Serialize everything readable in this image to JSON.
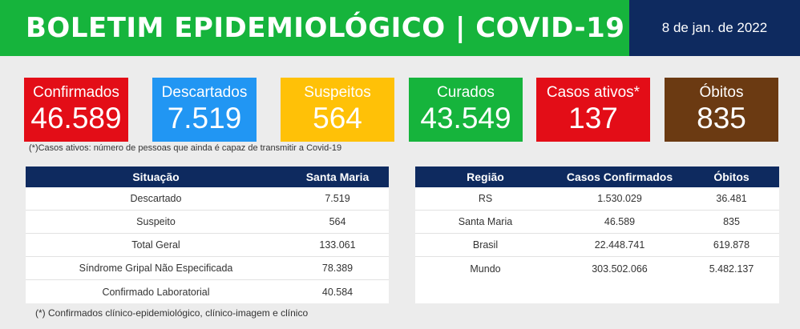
{
  "header": {
    "title": "BOLETIM EPIDEMIOLÓGICO | COVID-19",
    "date": "8 de jan. de 2022"
  },
  "cards": [
    {
      "label": "Confirmados",
      "value": "46.589",
      "color": "#e30d17"
    },
    {
      "label": "Descartados",
      "value": "7.519",
      "color": "#2196f3"
    },
    {
      "label": "Suspeitos",
      "value": "564",
      "color": "#ffc107"
    },
    {
      "label": "Curados",
      "value": "43.549",
      "color": "#16b43c"
    },
    {
      "label": "Casos ativos*",
      "value": "137",
      "color": "#e30d17"
    },
    {
      "label": "Óbitos",
      "value": "835",
      "color": "#6b3a12"
    }
  ],
  "note_active": "(*)Casos ativos: número de pessoas que ainda é capaz de transmitir a Covid-19",
  "table_situacao": {
    "headers": [
      "Situação",
      "Santa Maria"
    ],
    "rows": [
      [
        "Descartado",
        "7.519"
      ],
      [
        "Suspeito",
        "564"
      ],
      [
        "Total Geral",
        "133.061"
      ],
      [
        "Síndrome Gripal Não Especificada",
        "78.389"
      ],
      [
        "Confirmado Laboratorial",
        "40.584"
      ]
    ]
  },
  "table_regiao": {
    "headers": [
      "Região",
      "Casos Confirmados",
      "Óbitos"
    ],
    "rows": [
      [
        "RS",
        "1.530.029",
        "36.481"
      ],
      [
        "Santa Maria",
        "46.589",
        "835"
      ],
      [
        "Brasil",
        "22.448.741",
        "619.878"
      ],
      [
        "Mundo",
        "303.502.066",
        "5.482.137"
      ]
    ]
  },
  "note_confirmed": "(*) Confirmados clínico-epidemiológico, clínico-imagem e clínico"
}
